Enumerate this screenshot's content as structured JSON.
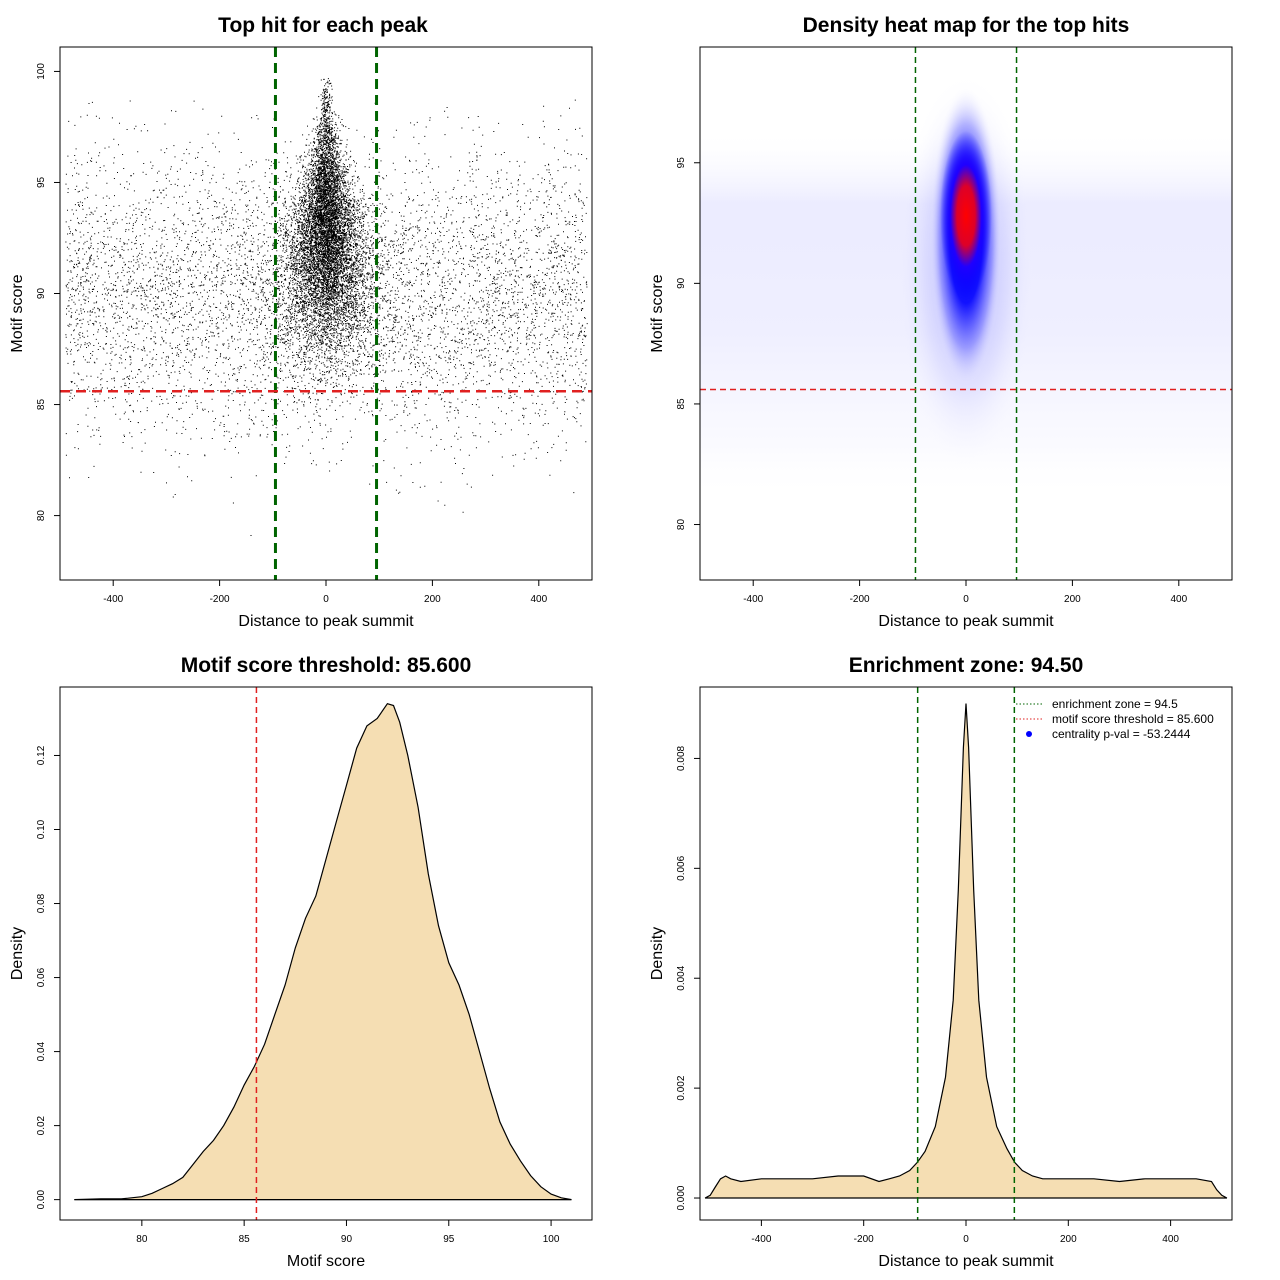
{
  "chart_data": [
    {
      "id": "p1",
      "type": "scatter",
      "title": "Top hit for each peak",
      "xlabel": "Distance to peak summit",
      "ylabel": "Motif score",
      "xlim": [
        -500,
        500
      ],
      "ylim": [
        77.1,
        101.1
      ],
      "xticks": [
        -400,
        -200,
        0,
        200,
        400
      ],
      "yticks": [
        80,
        85,
        90,
        95,
        100
      ],
      "grid": false,
      "vlines": [
        -95,
        95
      ],
      "hline": 85.6,
      "vline_color": "#006400",
      "hline_color": "#e02020",
      "point_color": "#000000",
      "background_points": 6000,
      "central_points": 9000
    },
    {
      "id": "p2",
      "type": "heatmap",
      "title": "Density heat map for the top hits",
      "xlabel": "Distance to peak summit",
      "ylabel": "Motif score",
      "xlim": [
        -500,
        500
      ],
      "ylim": [
        77.7,
        99.8
      ],
      "xticks": [
        -400,
        -200,
        0,
        200,
        400
      ],
      "yticks": [
        80,
        85,
        90,
        95
      ],
      "grid": false,
      "vlines": [
        -95,
        95
      ],
      "hline": 85.6,
      "peak": {
        "x": 0,
        "y": 92.8
      },
      "colors": [
        "#ffffff",
        "#0000ff",
        "#ff0000"
      ],
      "vline_color": "#006400",
      "hline_color": "#e02020"
    },
    {
      "id": "p3",
      "type": "area",
      "title": "Motif score threshold: 85.600",
      "xlabel": "Motif score",
      "ylabel": "Density",
      "xlim": [
        76.0,
        102.0
      ],
      "ylim": [
        -0.0055,
        0.1385
      ],
      "xticks": [
        80,
        85,
        90,
        95,
        100
      ],
      "yticks": [
        0.0,
        0.02,
        0.04,
        0.06,
        0.08,
        0.1,
        0.12
      ],
      "ytick_labels": [
        "0.00",
        "0.02",
        "0.04",
        "0.06",
        "0.08",
        "0.10",
        "0.12"
      ],
      "grid": false,
      "vline": 85.6,
      "vline_color": "#e02020",
      "fill": "#f5deb3",
      "x": [
        76.7,
        78,
        79,
        80,
        80.5,
        81,
        81.5,
        82,
        82.5,
        83,
        83.5,
        84,
        84.5,
        85,
        85.5,
        86,
        86.5,
        87,
        87.5,
        88,
        88.5,
        89,
        89.5,
        90,
        90.5,
        91,
        91.5,
        92,
        92.3,
        92.6,
        93,
        93.5,
        94,
        94.5,
        95,
        95.5,
        96,
        96.5,
        97,
        97.5,
        98,
        98.5,
        99,
        99.5,
        100,
        100.5,
        101
      ],
      "y": [
        0.0,
        0.0002,
        0.0002,
        0.0008,
        0.0017,
        0.003,
        0.0043,
        0.006,
        0.0095,
        0.013,
        0.016,
        0.02,
        0.025,
        0.031,
        0.036,
        0.042,
        0.05,
        0.058,
        0.068,
        0.076,
        0.082,
        0.092,
        0.102,
        0.112,
        0.122,
        0.128,
        0.13,
        0.134,
        0.1335,
        0.129,
        0.12,
        0.106,
        0.088,
        0.074,
        0.064,
        0.058,
        0.05,
        0.04,
        0.03,
        0.021,
        0.015,
        0.0105,
        0.0065,
        0.0035,
        0.0015,
        0.0005,
        0.0
      ]
    },
    {
      "id": "p4",
      "type": "area",
      "title": "Enrichment zone: 94.50",
      "xlabel": "Distance to peak summit",
      "ylabel": "Density",
      "xlim": [
        -520,
        520
      ],
      "ylim": [
        -0.0004,
        0.0093
      ],
      "xticks": [
        -400,
        -200,
        0,
        200,
        400
      ],
      "yticks": [
        0.0,
        0.002,
        0.004,
        0.006,
        0.008
      ],
      "ytick_labels": [
        "0.000",
        "0.002",
        "0.004",
        "0.006",
        "0.008"
      ],
      "grid": false,
      "vlines": [
        -94.5,
        94.5
      ],
      "vline_color": "#006400",
      "fill": "#f5deb3",
      "x": [
        -510,
        -500,
        -490,
        -480,
        -470,
        -460,
        -440,
        -400,
        -350,
        -300,
        -250,
        -200,
        -170,
        -150,
        -130,
        -110,
        -95,
        -80,
        -60,
        -40,
        -25,
        -15,
        -5,
        0,
        5,
        15,
        25,
        40,
        60,
        80,
        95,
        110,
        130,
        150,
        200,
        250,
        300,
        350,
        400,
        450,
        480,
        490,
        500,
        510
      ],
      "y": [
        0.0,
        5e-05,
        0.0002,
        0.00035,
        0.0004,
        0.00035,
        0.0003,
        0.00035,
        0.00035,
        0.00035,
        0.0004,
        0.0004,
        0.0003,
        0.00035,
        0.0004,
        0.0005,
        0.00065,
        0.00085,
        0.0013,
        0.0022,
        0.0036,
        0.0056,
        0.0082,
        0.009,
        0.0082,
        0.0056,
        0.0036,
        0.0022,
        0.0013,
        0.0009,
        0.00065,
        0.0005,
        0.0004,
        0.00035,
        0.00035,
        0.00035,
        0.0003,
        0.00035,
        0.00035,
        0.00035,
        0.0003,
        0.00015,
        5e-05,
        0.0
      ],
      "legend": {
        "placement": "top-right",
        "entries": [
          {
            "label": "enrichment zone = 94.5",
            "color": "#006400",
            "style": "dotted-line"
          },
          {
            "label": "motif score threshold = 85.600",
            "color": "#e02020",
            "style": "dotted-line"
          },
          {
            "label": "centrality p-val = -53.2444",
            "color": "#0000ff",
            "style": "point"
          }
        ]
      }
    }
  ]
}
